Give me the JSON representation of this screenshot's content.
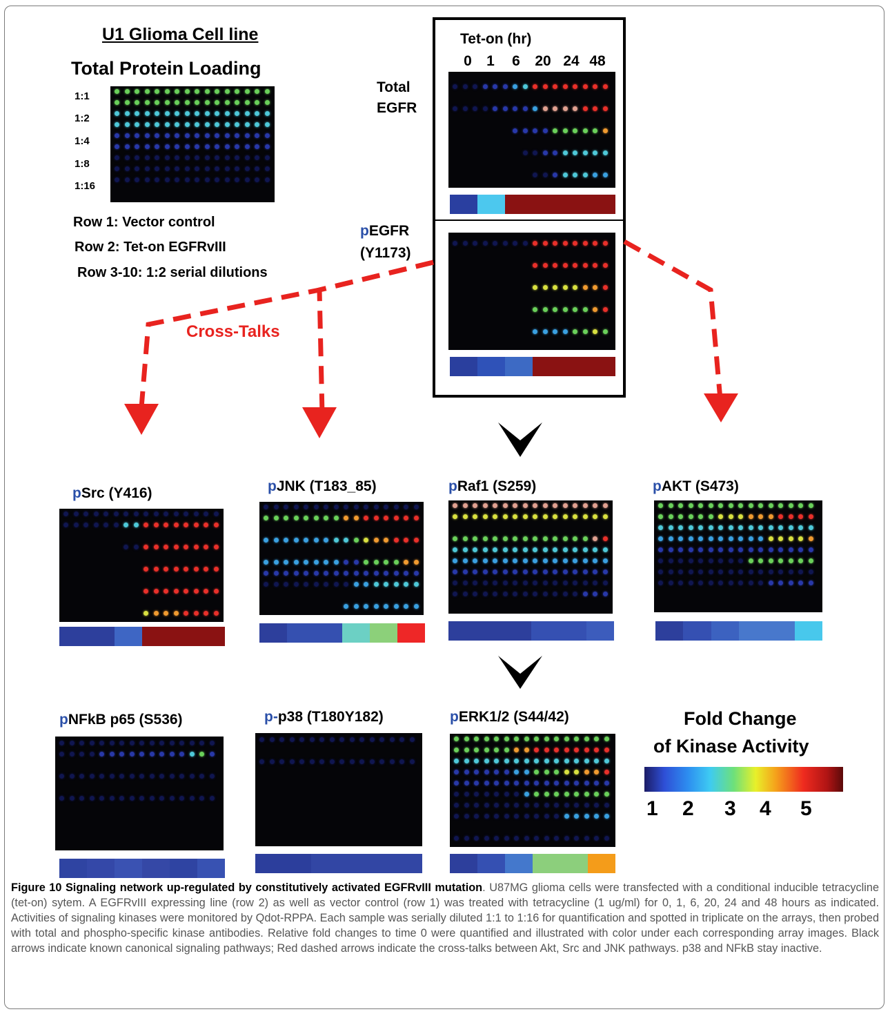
{
  "figure": {
    "title_cell_line": "U1 Glioma Cell line",
    "total_protein_loading": "Total Protein Loading",
    "dilutions": [
      "1:1",
      "1:2",
      "1:4",
      "1:8",
      "1:16"
    ],
    "row_notes": [
      "Row 1: Vector control",
      "Row 2: Tet-on EGFRvIII",
      "Row 3-10: 1:2 serial dilutions"
    ],
    "teton_header": "Tet-on (hr)",
    "timepoints": [
      "0",
      "1",
      "6",
      "20",
      "24",
      "48"
    ],
    "total_egfr": [
      "Total",
      "EGFR"
    ],
    "pegfr_prefix": "p",
    "pegfr_rest": "EGFR",
    "pegfr_site": "(Y1173)",
    "cross_talks": "Cross-Talks",
    "panels_mid": [
      {
        "prefix": "p",
        "rest": "Src (Y416)"
      },
      {
        "prefix": "p",
        "rest": "JNK (T183_85)"
      },
      {
        "prefix": "p",
        "rest": "Raf1 (S259)"
      },
      {
        "prefix": "p",
        "rest": "AKT (S473)"
      }
    ],
    "panels_bottom": [
      {
        "prefix": "p",
        "rest": "NFkB p65 (S536)"
      },
      {
        "prefix": "p-",
        "rest": "p38 (T180Y182)"
      },
      {
        "prefix": "p",
        "rest": "ERK1/2 (S44/42)"
      }
    ],
    "legend_title": [
      "Fold Change",
      "of Kinase Activity"
    ],
    "legend_ticks": [
      "1",
      "2",
      "3",
      "4",
      "5"
    ]
  },
  "caption": {
    "label": "Figure 10 Signaling network up-regulated by constitutively activated EGFRvIII mutation",
    "text": ". U87MG glioma cells were transfected with a conditional inducible tetracycline (tet-on) sytem. A EGFRvIII expressing line (row 2) as well as vector control (row 1) was treated with tetracycline (1 ug/ml) for 0, 1, 6, 20, 24 and 48 hours as indicated. Activities of signaling kinases were monitored by Qdot-RPPA. Each sample was serially diluted 1:1 to 1:16 for quantification and spotted in triplicate on the arrays, then probed with total and phospho-specific kinase antibodies. Relative fold changes to time 0 were quantified and illustrated with color under each corresponding array images. Black arrows indicate known canonical signaling pathways; Red dashed arrows indicate the cross-talks between Akt, Src and JNK pathways. p38 and NFkB stay inactive."
  },
  "colors": {
    "red_arrow": "#e8231f",
    "phospho_prefix": "#2a4fa8"
  }
}
